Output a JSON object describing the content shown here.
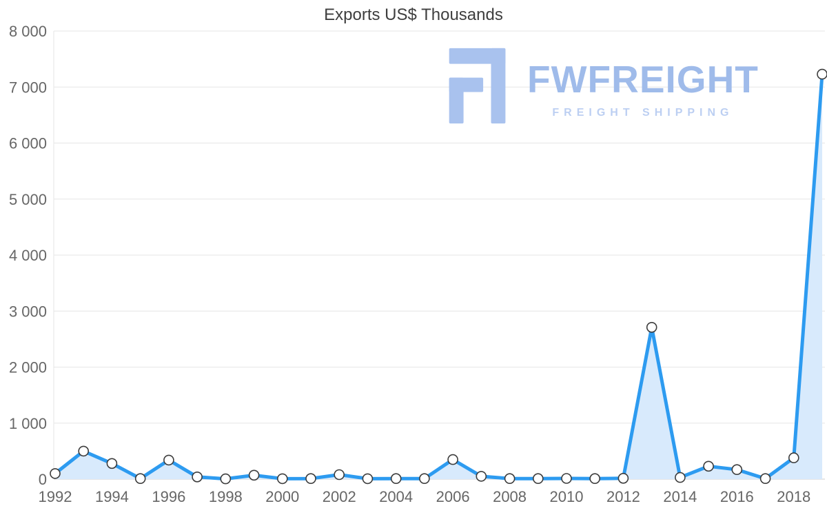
{
  "chart_data": {
    "type": "area",
    "title": "Exports US$ Thousands",
    "xlabel": "",
    "ylabel": "",
    "x": [
      1992,
      1993,
      1994,
      1995,
      1996,
      1997,
      1998,
      1999,
      2000,
      2001,
      2002,
      2003,
      2004,
      2005,
      2006,
      2007,
      2008,
      2009,
      2010,
      2011,
      2012,
      2013,
      2014,
      2015,
      2016,
      2017,
      2018,
      2019
    ],
    "values": [
      100,
      500,
      280,
      10,
      340,
      40,
      5,
      70,
      8,
      10,
      80,
      8,
      10,
      10,
      350,
      50,
      10,
      10,
      12,
      10,
      15,
      2710,
      30,
      230,
      170,
      10,
      380,
      7230
    ],
    "ylim": [
      0,
      8000
    ],
    "grid": true,
    "legend": "none",
    "y_ticks": [
      {
        "value": 0,
        "label": "0"
      },
      {
        "value": 1000,
        "label": "1 000"
      },
      {
        "value": 2000,
        "label": "2 000"
      },
      {
        "value": 3000,
        "label": "3 000"
      },
      {
        "value": 4000,
        "label": "4 000"
      },
      {
        "value": 5000,
        "label": "5 000"
      },
      {
        "value": 6000,
        "label": "6 000"
      },
      {
        "value": 7000,
        "label": "7 000"
      },
      {
        "value": 8000,
        "label": "8 000"
      }
    ],
    "x_ticks": [
      {
        "value": 1992,
        "label": "1992"
      },
      {
        "value": 1994,
        "label": "1994"
      },
      {
        "value": 1996,
        "label": "1996"
      },
      {
        "value": 1998,
        "label": "1998"
      },
      {
        "value": 2000,
        "label": "2000"
      },
      {
        "value": 2002,
        "label": "2002"
      },
      {
        "value": 2004,
        "label": "2004"
      },
      {
        "value": 2006,
        "label": "2006"
      },
      {
        "value": 2008,
        "label": "2008"
      },
      {
        "value": 2010,
        "label": "2010"
      },
      {
        "value": 2012,
        "label": "2012"
      },
      {
        "value": 2014,
        "label": "2014"
      },
      {
        "value": 2016,
        "label": "2016"
      },
      {
        "value": 2018,
        "label": "2018"
      }
    ],
    "line_color": "#2d9bf0",
    "area_color": "#d8eafc",
    "marker_fill": "#ffffff",
    "marker_stroke": "#3c3c3c",
    "grid_color": "#e6e6e6",
    "axis_color": "#cccccc",
    "label_color": "#666666",
    "title_color": "#3e3e3e"
  },
  "logo": {
    "brand": "FWFREIGHT",
    "tagline": "FREIGHT SHIPPING",
    "brand_color": "#9fbbea",
    "tagline_color": "#bccff2",
    "icon_color": "#a9c2ee",
    "icon": "fwfreight-f-icon"
  }
}
